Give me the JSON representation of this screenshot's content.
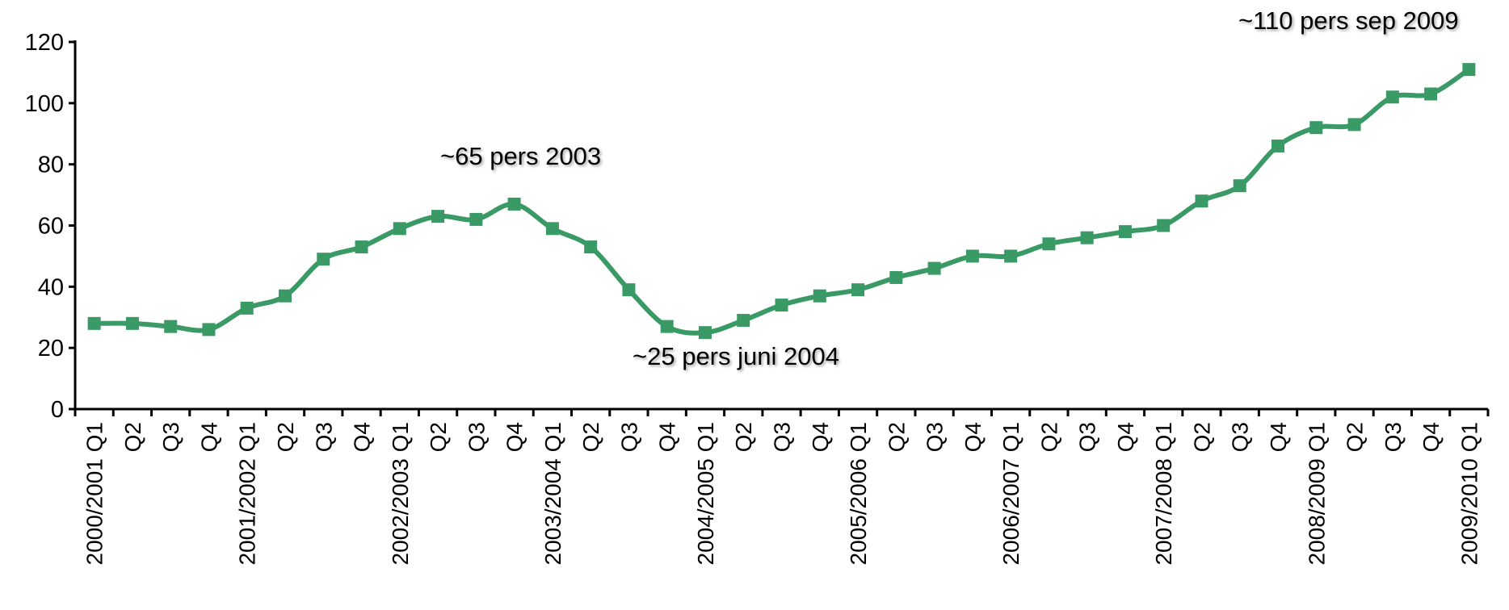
{
  "chart_data": {
    "type": "line",
    "categories": [
      "2000/2001 Q1",
      "Q2",
      "Q3",
      "Q4",
      "2001/2002 Q1",
      "Q2",
      "Q3",
      "Q4",
      "2002/2003 Q1",
      "Q2",
      "Q3",
      "Q4",
      "2003/2004 Q1",
      "Q2",
      "Q3",
      "Q4",
      "2004/2005 Q1",
      "Q2",
      "Q3",
      "Q4",
      "2005/2006 Q1",
      "Q2",
      "Q3",
      "Q4",
      "2006/2007 Q1",
      "Q2",
      "Q3",
      "Q4",
      "2007/2008 Q1",
      "Q2",
      "Q3",
      "Q4",
      "2008/2009 Q1",
      "Q2",
      "Q3",
      "Q4",
      "2009/2010 Q1"
    ],
    "values": [
      28,
      28,
      27,
      26,
      33,
      37,
      49,
      53,
      59,
      63,
      62,
      67,
      59,
      53,
      39,
      27,
      25,
      29,
      34,
      37,
      39,
      43,
      46,
      50,
      50,
      54,
      56,
      58,
      60,
      68,
      73,
      86,
      92,
      93,
      102,
      103,
      111
    ],
    "color": "#3a9a65",
    "ylim": [
      0,
      120
    ],
    "yticks": [
      0,
      20,
      40,
      60,
      80,
      100,
      120
    ],
    "annotations": [
      "~65 pers 2003",
      "~25 pers juni 2004",
      "~110 pers sep 2009"
    ]
  }
}
